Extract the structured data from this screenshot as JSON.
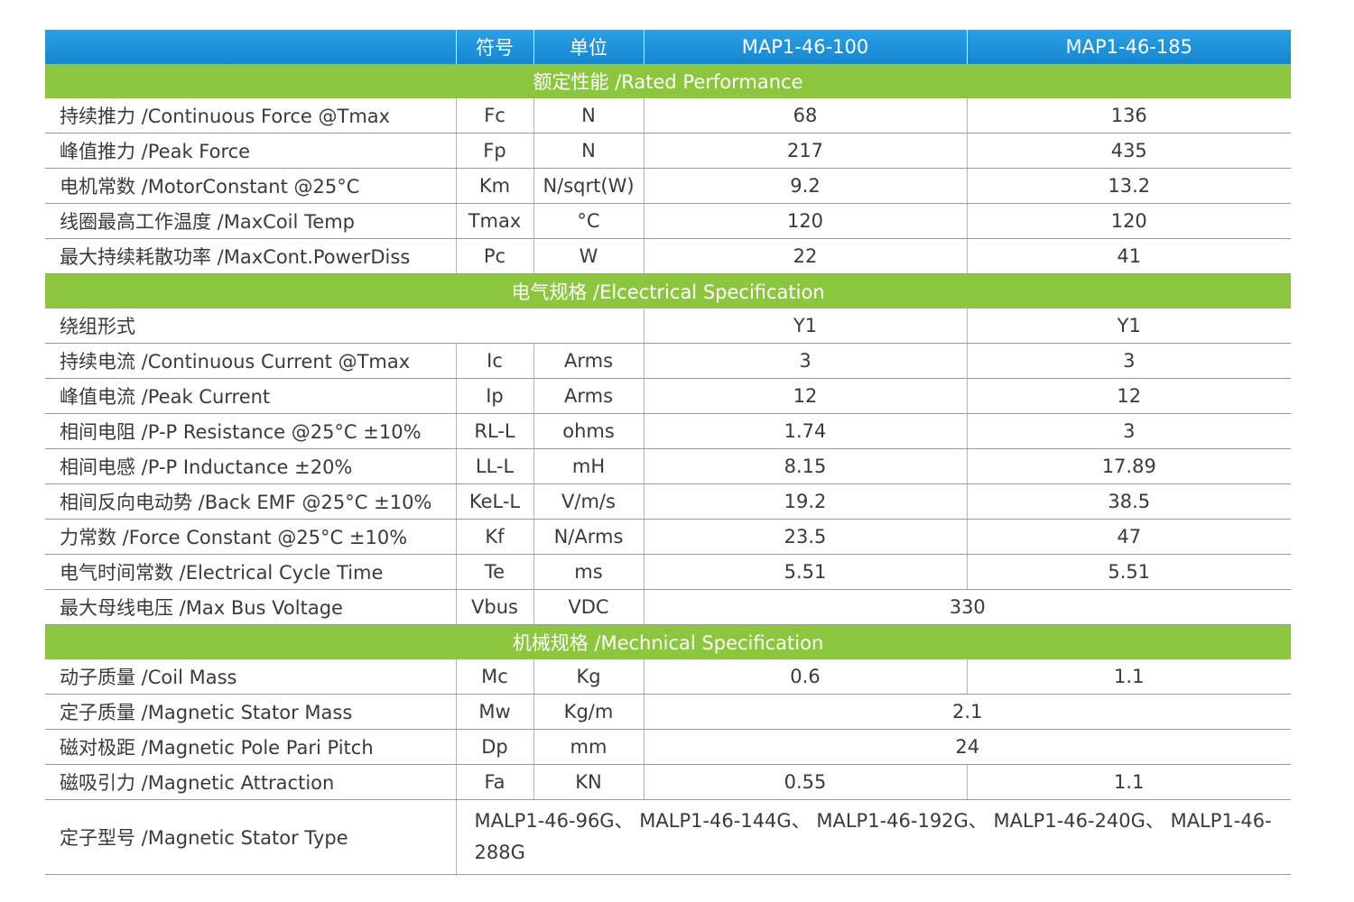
{
  "table": {
    "header": [
      "符号",
      "单位",
      "MAP1-46-100",
      "MAP1-46-185"
    ],
    "sections": [
      {
        "title": "额定性能 /Rated Performance",
        "rows": [
          [
            "持续推力 /Continuous Force @Tmax",
            "Fc",
            "N",
            "68",
            "136"
          ],
          [
            "峰值推力 /Peak Force",
            "Fp",
            "N",
            "217",
            "435"
          ],
          [
            "电机常数 /MotorConstant @25°C",
            "Km",
            "N/sqrt(W)",
            "9.2",
            "13.2"
          ],
          [
            "线圈最高工作温度 /MaxCoil Temp",
            "Tmax",
            "°C",
            "120",
            "120"
          ],
          [
            "最大持续耗散功率 /MaxCont.PowerDiss",
            "Pc",
            "W",
            "22",
            "41"
          ]
        ]
      },
      {
        "title": "电气规格 /Elcectrical Specification",
        "rows": [
          [
            "绕组形式",
            "Y1",
            "Y1"
          ],
          [
            "持续电流 /Continuous Current @Tmax",
            "Ic",
            "Arms",
            "3",
            "3"
          ],
          [
            "峰值电流 /Peak Current",
            "Ip",
            "Arms",
            "12",
            "12"
          ],
          [
            "相间电阻 /P-P Resistance @25°C ±10%",
            "RL-L",
            "ohms",
            "1.74",
            "3"
          ],
          [
            "相间电感 /P-P Inductance ±20%",
            "LL-L",
            "mH",
            "8.15",
            "17.89"
          ],
          [
            "相间反向电动势 /Back EMF @25°C ±10%",
            "KeL-L",
            "V/m/s",
            "19.2",
            "38.5"
          ],
          [
            "力常数 /Force Constant @25°C ±10%",
            "Kf",
            "N/Arms",
            "23.5",
            "47"
          ],
          [
            "电气时间常数 /Electrical Cycle Time",
            "Te",
            "ms",
            "5.51",
            "5.51"
          ],
          [
            "最大母线电压 /Max Bus Voltage",
            "Vbus",
            "VDC",
            "330"
          ]
        ]
      },
      {
        "title": "机械规格 /Mechnical Specification",
        "rows": [
          [
            "动子质量 /Coil Mass",
            "Mc",
            "Kg",
            "0.6",
            "1.1"
          ],
          [
            "定子质量 /Magnetic Stator Mass",
            "Mw",
            "Kg/m",
            "2.1"
          ],
          [
            "磁对极距 /Magnetic Pole Pari Pitch",
            "Dp",
            "mm",
            "24"
          ],
          [
            "磁吸引力 /Magnetic Attraction",
            "Fa",
            "KN",
            "0.55",
            "1.1"
          ],
          [
            "定子型号 /Magnetic Stator Type",
            "MALP1-46-96G、 MALP1-46-144G、 MALP1-46-192G、 MALP1-46-240G、 MALP1-46-288G"
          ]
        ]
      }
    ]
  }
}
